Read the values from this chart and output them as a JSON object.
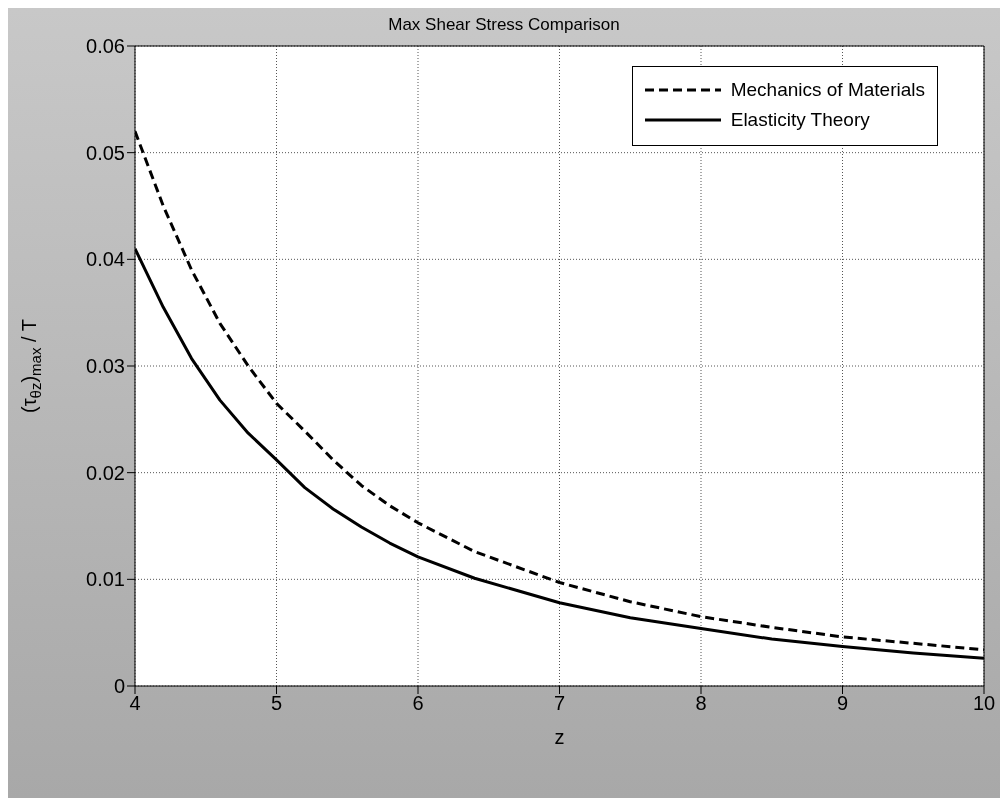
{
  "chart_data": {
    "type": "line",
    "title": "Max Shear Stress Comparison",
    "xlabel": "z",
    "ylabel": "(τ$_{θz}$)$_{max}$ / T",
    "x": [
      4,
      4.2,
      4.4,
      4.6,
      4.8,
      5,
      5.2,
      5.4,
      5.6,
      5.8,
      6,
      6.4,
      7,
      7.5,
      8,
      8.5,
      9,
      9.5,
      10
    ],
    "series": [
      {
        "name": "Mechanics of Materials",
        "color": "#000000",
        "line_style": "dashed",
        "values": [
          0.052,
          0.045,
          0.039,
          0.034,
          0.03,
          0.0265,
          0.0239,
          0.0212,
          0.0188,
          0.0169,
          0.0153,
          0.0126,
          0.0097,
          0.0079,
          0.0065,
          0.0055,
          0.0046,
          0.004,
          0.0034
        ]
      },
      {
        "name": "Elasticity Theory",
        "color": "#000000",
        "line_style": "solid",
        "values": [
          0.041,
          0.0355,
          0.0307,
          0.0268,
          0.0237,
          0.0212,
          0.0186,
          0.0166,
          0.0149,
          0.0134,
          0.0121,
          0.0101,
          0.0078,
          0.0064,
          0.0054,
          0.0044,
          0.0037,
          0.0031,
          0.0026
        ]
      }
    ],
    "xlim": [
      4,
      10
    ],
    "xticks": [
      4,
      5,
      6,
      7,
      8,
      9,
      10
    ],
    "ylim": [
      0,
      0.06
    ],
    "yticks": [
      0,
      0.01,
      0.02,
      0.03,
      0.04,
      0.05,
      0.06
    ],
    "grid": true,
    "legend": "top right",
    "marker": "none"
  }
}
